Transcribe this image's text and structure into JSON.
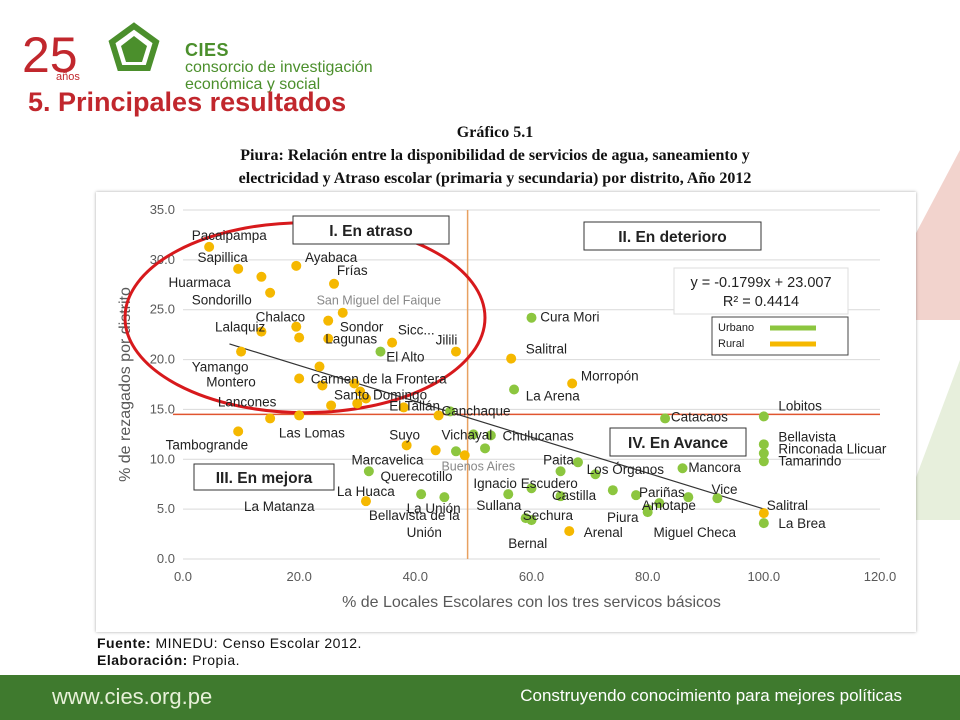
{
  "header": {
    "logo_25": "25",
    "logo_anos": "años",
    "brand": "CIES",
    "org_line1": "consorcio de investigación",
    "org_line2": "económica y social"
  },
  "section_title": "5. Principales resultados",
  "figure": {
    "number": "Gráfico 5.1",
    "caption_line1": "Piura: Relación entre la disponibilidad de servicios de agua, saneamiento y",
    "caption_line2": "electricidad y Atraso escolar (primaria y secundaria) por distrito, Año 2012"
  },
  "source": {
    "fuente_label": "Fuente:",
    "fuente_text": "MINEDU: Censo Escolar 2012.",
    "elab_label": "Elaboración:",
    "elab_text": "Propia."
  },
  "footer": {
    "url": "www.cies.org.pe",
    "tagline": "Construyendo conocimiento para mejores políticas"
  },
  "colors": {
    "urbano": "#8cc63f",
    "rural": "#f5b800",
    "title_red": "#c1272d",
    "green_brand": "#4b8f2c",
    "footer_bg": "#3f7a2e"
  },
  "chart_data": {
    "type": "scatter",
    "xlabel": "% de Locales Escolares con los tres servicos básicos",
    "ylabel": "% de rezagados por distrito",
    "xlim": [
      0,
      120
    ],
    "ylim": [
      0,
      35
    ],
    "xticks": [
      "0.0",
      "20.0",
      "40.0",
      "60.0",
      "80.0",
      "100.0",
      "120.0"
    ],
    "yticks": [
      "0.0",
      "5.0",
      "10.0",
      "15.0",
      "20.0",
      "25.0",
      "30.0",
      "35.0"
    ],
    "grid": true,
    "legend": {
      "placement": "right",
      "entries": [
        "Urbano",
        "Rural"
      ]
    },
    "trendline": {
      "equation": "y = -0.1799x + 23.007",
      "r2": "R² = 0.4414",
      "slope": -0.1799,
      "intercept": 23.007
    },
    "reference_lines": {
      "x": 49,
      "y": 14.5
    },
    "quadrants": [
      "I. En atraso",
      "II. En deterioro",
      "III. En mejora",
      "IV. En Avance"
    ],
    "series": [
      {
        "name": "Urbano",
        "points": [
          {
            "x": 60,
            "y": 24.2
          },
          {
            "x": 57,
            "y": 17
          },
          {
            "x": 34,
            "y": 20.8
          },
          {
            "x": 46,
            "y": 14.8
          },
          {
            "x": 52,
            "y": 11.1
          },
          {
            "x": 47,
            "y": 10.8
          },
          {
            "x": 50,
            "y": 12.5
          },
          {
            "x": 53,
            "y": 12.4
          },
          {
            "x": 32,
            "y": 8.8
          },
          {
            "x": 65,
            "y": 8.8
          },
          {
            "x": 68,
            "y": 9.7
          },
          {
            "x": 71,
            "y": 8.5
          },
          {
            "x": 41,
            "y": 6.5
          },
          {
            "x": 45,
            "y": 6.2
          },
          {
            "x": 56,
            "y": 6.5
          },
          {
            "x": 59,
            "y": 4.1
          },
          {
            "x": 60,
            "y": 3.9
          },
          {
            "x": 60,
            "y": 7.1
          },
          {
            "x": 65,
            "y": 6.3
          },
          {
            "x": 74,
            "y": 6.9
          },
          {
            "x": 78,
            "y": 6.4
          },
          {
            "x": 80,
            "y": 5.0
          },
          {
            "x": 82,
            "y": 5.6
          },
          {
            "x": 87,
            "y": 6.2
          },
          {
            "x": 86,
            "y": 9.1
          },
          {
            "x": 92,
            "y": 6.1
          },
          {
            "x": 80,
            "y": 4.7
          },
          {
            "x": 83,
            "y": 14.1
          },
          {
            "x": 100,
            "y": 14.3
          },
          {
            "x": 100,
            "y": 11.5
          },
          {
            "x": 100,
            "y": 10.6
          },
          {
            "x": 100,
            "y": 9.8
          },
          {
            "x": 100,
            "y": 3.6
          }
        ]
      },
      {
        "name": "Rural",
        "points": [
          {
            "x": 4.5,
            "y": 31.3
          },
          {
            "x": 9.5,
            "y": 29.1
          },
          {
            "x": 13.5,
            "y": 28.3
          },
          {
            "x": 19.5,
            "y": 29.4
          },
          {
            "x": 15,
            "y": 26.7
          },
          {
            "x": 26,
            "y": 27.6
          },
          {
            "x": 27.5,
            "y": 24.7
          },
          {
            "x": 25,
            "y": 23.9
          },
          {
            "x": 19.5,
            "y": 23.3
          },
          {
            "x": 13.5,
            "y": 22.8
          },
          {
            "x": 20,
            "y": 22.2
          },
          {
            "x": 25,
            "y": 22.1
          },
          {
            "x": 36,
            "y": 21.7
          },
          {
            "x": 47,
            "y": 20.8
          },
          {
            "x": 56.5,
            "y": 20.1
          },
          {
            "x": 10,
            "y": 20.8
          },
          {
            "x": 23.5,
            "y": 19.3
          },
          {
            "x": 20,
            "y": 18.1
          },
          {
            "x": 24,
            "y": 17.4
          },
          {
            "x": 29.5,
            "y": 17.6
          },
          {
            "x": 30.5,
            "y": 16.8
          },
          {
            "x": 31.5,
            "y": 16.1
          },
          {
            "x": 30,
            "y": 15.6
          },
          {
            "x": 25.5,
            "y": 15.4
          },
          {
            "x": 15,
            "y": 14.1
          },
          {
            "x": 20,
            "y": 14.4
          },
          {
            "x": 38,
            "y": 15.2
          },
          {
            "x": 44,
            "y": 14.4
          },
          {
            "x": 67,
            "y": 17.6
          },
          {
            "x": 9.5,
            "y": 12.8
          },
          {
            "x": 38.5,
            "y": 11.4
          },
          {
            "x": 43.5,
            "y": 10.9
          },
          {
            "x": 48.5,
            "y": 10.4
          },
          {
            "x": 31.5,
            "y": 5.8
          },
          {
            "x": 66.5,
            "y": 2.8
          },
          {
            "x": 100,
            "y": 4.6
          }
        ]
      }
    ],
    "annotations": [
      {
        "text": "Pacaipampa",
        "x": 1.5,
        "y": 32.0
      },
      {
        "text": "Sapillica",
        "x": 2.5,
        "y": 29.8
      },
      {
        "text": "Ayabaca",
        "x": 21.0,
        "y": 29.8
      },
      {
        "text": "Frías",
        "x": 26.5,
        "y": 28.5
      },
      {
        "text": "Huarmaca",
        "x": -2.5,
        "y": 27.3
      },
      {
        "text": "Sondorillo",
        "x": 1.5,
        "y": 25.5
      },
      {
        "text": "San Miguel del Faique",
        "x": 23.0,
        "y": 25.5,
        "muted": true
      },
      {
        "text": "Chalaco",
        "x": 12.5,
        "y": 23.8
      },
      {
        "text": "Sondor",
        "x": 27.0,
        "y": 22.8
      },
      {
        "text": "Lalaquiz",
        "x": 5.5,
        "y": 22.8
      },
      {
        "text": "Sicc...",
        "x": 37.0,
        "y": 22.5
      },
      {
        "text": "Lagunas",
        "x": 24.5,
        "y": 21.6
      },
      {
        "text": "Jilili",
        "x": 43.5,
        "y": 21.5
      },
      {
        "text": "El Alto",
        "x": 35.0,
        "y": 19.8
      },
      {
        "text": "Yamango",
        "x": 1.5,
        "y": 18.8
      },
      {
        "text": "Carmen de la Frontera",
        "x": 22.0,
        "y": 17.6
      },
      {
        "text": "Montero",
        "x": 4.0,
        "y": 17.3
      },
      {
        "text": "Santo Domingo",
        "x": 26.0,
        "y": 16.0
      },
      {
        "text": "Lancones",
        "x": 6.0,
        "y": 15.3
      },
      {
        "text": "El Tallán",
        "x": 35.5,
        "y": 14.9
      },
      {
        "text": "Canchaque",
        "x": 44.5,
        "y": 14.4
      },
      {
        "text": "Cura Mori",
        "x": 61.5,
        "y": 23.8
      },
      {
        "text": "Salitral",
        "x": 59.0,
        "y": 20.6
      },
      {
        "text": "Morropón",
        "x": 68.5,
        "y": 17.9
      },
      {
        "text": "La Arena",
        "x": 59.0,
        "y": 15.9
      },
      {
        "text": "Catacaos",
        "x": 84.0,
        "y": 13.8
      },
      {
        "text": "Lobitos",
        "x": 102.5,
        "y": 14.9
      },
      {
        "text": "Las Lomas",
        "x": 16.5,
        "y": 12.2
      },
      {
        "text": "Tambogrande",
        "x": -3.0,
        "y": 11.0
      },
      {
        "text": "Suyo",
        "x": 35.5,
        "y": 12.0
      },
      {
        "text": "Vichayal",
        "x": 44.5,
        "y": 12.0
      },
      {
        "text": "Chulucanas",
        "x": 55.0,
        "y": 11.9
      },
      {
        "text": "Bellavista",
        "x": 102.5,
        "y": 11.8
      },
      {
        "text": "Rinconada Llicuar",
        "x": 102.5,
        "y": 10.6
      },
      {
        "text": "Tamarindo",
        "x": 102.5,
        "y": 9.4
      },
      {
        "text": "Marcavelica",
        "x": 29.0,
        "y": 9.5
      },
      {
        "text": "Buenos Aires",
        "x": 44.5,
        "y": 8.9,
        "muted": true
      },
      {
        "text": "Paita",
        "x": 62.0,
        "y": 9.5
      },
      {
        "text": "Los Órganos",
        "x": 69.5,
        "y": 8.5
      },
      {
        "text": "Mancora",
        "x": 87.0,
        "y": 8.7
      },
      {
        "text": "Querecotillo",
        "x": 34.0,
        "y": 7.8
      },
      {
        "text": "Ignacio Escudero",
        "x": 50.0,
        "y": 7.1
      },
      {
        "text": "La Huaca",
        "x": 26.5,
        "y": 6.3
      },
      {
        "text": "Castilla",
        "x": 63.5,
        "y": 5.9
      },
      {
        "text": "Pariñas",
        "x": 78.5,
        "y": 6.2
      },
      {
        "text": "Vice",
        "x": 91.0,
        "y": 6.5
      },
      {
        "text": "La Matanza",
        "x": 10.5,
        "y": 4.8
      },
      {
        "text": "La Unión",
        "x": 38.5,
        "y": 4.6
      },
      {
        "text": "Sullana",
        "x": 50.5,
        "y": 4.9
      },
      {
        "text": "Amotape",
        "x": 79.0,
        "y": 4.9
      },
      {
        "text": "Salitral",
        "x": 100.5,
        "y": 4.9
      },
      {
        "text": "Bellavista de la",
        "x": 32.0,
        "y": 3.9
      },
      {
        "text": "Sechura",
        "x": 58.5,
        "y": 3.9
      },
      {
        "text": "Piura",
        "x": 73.0,
        "y": 3.7
      },
      {
        "text": "La Brea",
        "x": 102.5,
        "y": 3.1
      },
      {
        "text": "Unión",
        "x": 38.5,
        "y": 2.2
      },
      {
        "text": "Arenal",
        "x": 69.0,
        "y": 2.2
      },
      {
        "text": "Miguel Checa",
        "x": 81.0,
        "y": 2.2
      },
      {
        "text": "Bernal",
        "x": 56.0,
        "y": 1.1
      }
    ]
  }
}
